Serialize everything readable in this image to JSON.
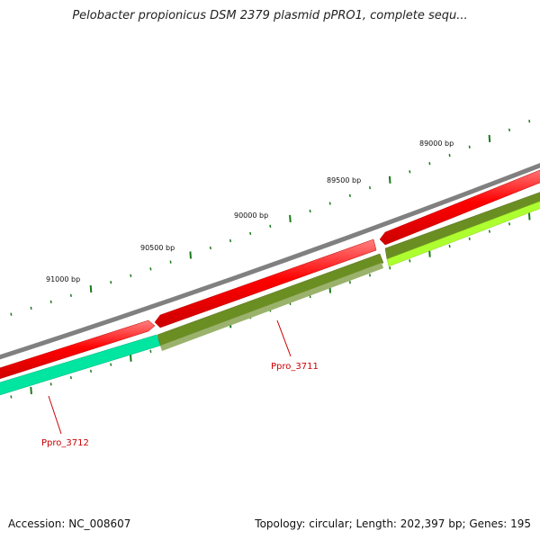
{
  "title": "Pelobacter propionicus DSM 2379 plasmid pPRO1, complete sequ...",
  "footer": {
    "accession": "Accession: NC_008607",
    "summary": "Topology: circular; Length: 202,397 bp; Genes: 195"
  },
  "ruler": {
    "labels": [
      "89000 bp",
      "89500 bp",
      "90000 bp",
      "90500 bp",
      "91000 bp"
    ],
    "tick_color": "#1a7a1a"
  },
  "genes": [
    {
      "label": "Ppro_3711",
      "color": "#cc0000"
    },
    {
      "label": "Ppro_3712",
      "color": "#cc0000"
    }
  ],
  "tracks": {
    "backbone_color": "#808080",
    "cds_color": "#ff0000",
    "feature_colors": [
      "#6b8e23",
      "#adff2f",
      "#00e5a0"
    ]
  }
}
